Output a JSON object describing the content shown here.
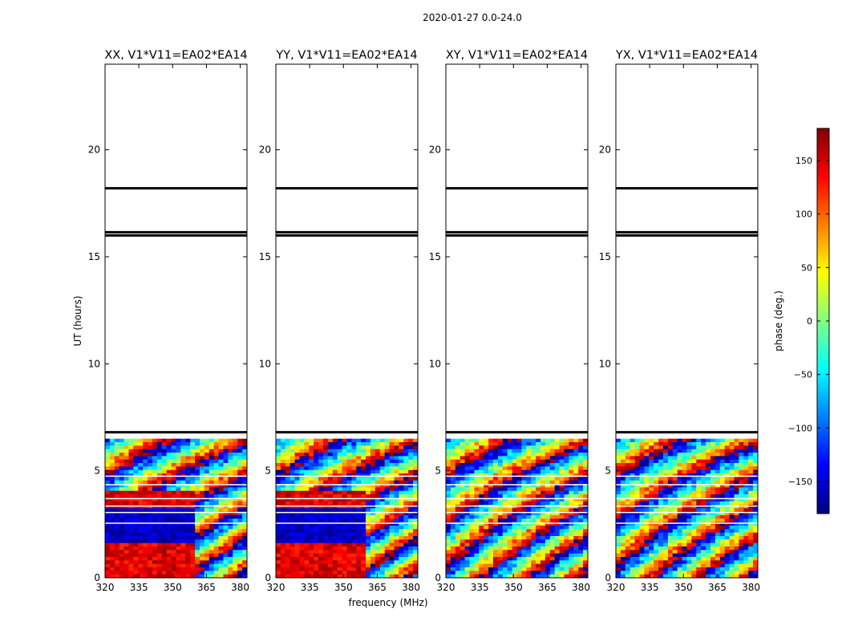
{
  "figure": {
    "suptitle": "2020-01-27 0.0-24.0",
    "xlabel": "frequency (MHz)",
    "ylabel": "UT (hours)"
  },
  "colorbar": {
    "label": "phase (deg.)",
    "colormap": "jet",
    "range": [
      -180,
      180
    ],
    "ticks": [
      -150,
      -100,
      -50,
      0,
      50,
      100,
      150
    ],
    "tick_labels": [
      "−150",
      "−100",
      "−50",
      "0",
      "50",
      "100",
      "150"
    ]
  },
  "chart_data": {
    "type": "heatmap",
    "colormap": "jet",
    "z_label": "phase (deg.)",
    "z_range": [
      -180,
      180
    ],
    "x_range": [
      320,
      383
    ],
    "y_range": [
      0,
      24
    ],
    "x_ticks": [
      320,
      335,
      350,
      365,
      380
    ],
    "y_ticks": [
      0,
      5,
      10,
      15,
      20
    ],
    "data_extent_hours": [
      0,
      6.5
    ],
    "bad_data_lines_hours": [
      6.8,
      16.0,
      16.15,
      18.2
    ],
    "panels": [
      {
        "title": "XX, V1*V11=EA02*EA14",
        "pol": "XX"
      },
      {
        "title": "YY, V1*V11=EA02*EA14",
        "pol": "YY"
      },
      {
        "title": "XY, V1*V11=EA02*EA14",
        "pol": "XY"
      },
      {
        "title": "YX, V1*V11=EA02*EA14",
        "pol": "YX"
      }
    ]
  }
}
